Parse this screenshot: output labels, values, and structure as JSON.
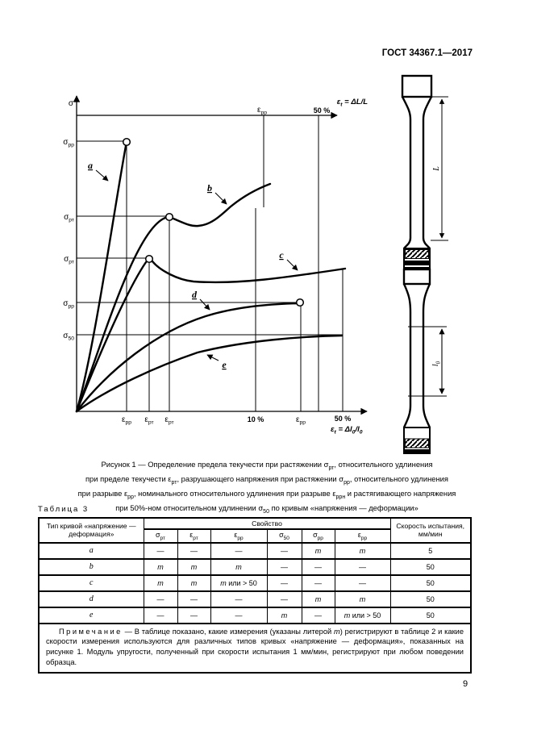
{
  "page": {
    "header": "ГОСТ 34367.1—2017",
    "number": "9"
  },
  "figure": {
    "axis": {
      "sigma": "σ",
      "top_axis_label": {
        "sym": "ε",
        "sub": "t",
        "rest": " = ΔL/L"
      },
      "top_tick_50": "50 %",
      "top_tick_epp": {
        "sym": "ε",
        "sub": "рр"
      },
      "bottom_axis_label": {
        "p1": "ε",
        "s1": "t",
        "p2": " = Δl",
        "s2": "0",
        "p3": "/l",
        "s3": "0"
      },
      "y_labels": [
        {
          "sym": "σ",
          "sub": "рр"
        },
        {
          "sym": "σ",
          "sub": "рт"
        },
        {
          "sym": "σ",
          "sub": "рт"
        },
        {
          "sym": "σ",
          "sub": "рр"
        },
        {
          "sym": "σ",
          "sub": "50"
        }
      ],
      "x_labels": [
        {
          "sym": "ε",
          "sub": "рр"
        },
        {
          "sym": "ε",
          "sub": "рт"
        },
        {
          "sym": "ε",
          "sub": "рт"
        },
        {
          "sym": "ε",
          "sub": "рр"
        }
      ],
      "x_tick_10": "10 %",
      "x_tick_50": "50 %"
    },
    "curve_labels": [
      "a",
      "b",
      "c",
      "d",
      "e"
    ],
    "specimens": {
      "dim1": "L",
      "dim2": {
        "sym": "l",
        "sub": "0"
      }
    }
  },
  "chart_data": {
    "type": "line",
    "title": "Кривые «напряжения — деформации» (схема)",
    "x_axis_top": "εt = ΔL/L, тик 50 %, тик εрр",
    "x_axis_bottom": "εt = Δl0/l0, тики: εрр, εрт, εрт, 10 %, εрр, 50 %",
    "y_axis": "σ, уровни сверху вниз: σрр, σрт, σрт, σрр, σ50",
    "series": [
      {
        "name": "a",
        "shape": "крутой подъём, разрушение в точке (εрр, σрр) — кружок"
      },
      {
        "name": "b",
        "shape": "подъём, предел текучести (εрт, σрт) — кружок, провал, дальнейший подъём до εрр по верхней оси"
      },
      {
        "name": "c",
        "shape": "подъём, предел текучести (εрт, σрт) — кружок, провал, пологий подъём за 50 %"
      },
      {
        "name": "d",
        "shape": "монотонный пологий подъём, разрушение в точке (εрр, σрр) — кружок"
      },
      {
        "name": "e",
        "shape": "монотонный пологий подъём до σ50 при удлинении 50 %"
      }
    ],
    "legend_position": "подписи у кривых со стрелками-выносками",
    "grid": false
  },
  "caption": {
    "lines": [
      "Рисунок 1 — Определение предела текучести при растяжении σ<sub>рт</sub>, относительного удлинения",
      "при пределе текучести ε<sub>рт</sub>, разрушающего напряжения при растяжении σ<sub>рр</sub>, относительного удлинения",
      "при разрыве ε<sub>рр</sub>, номинального относительного удлинения при разрыве ε<sub>ррн</sub> и растягивающего напряжения",
      "при 50%-ном относительном удлинении σ<sub>50</sub> по кривым «напряжения — деформации»"
    ]
  },
  "table": {
    "title": "Таблица 3",
    "col1_header": "Тип кривой «напряжение —<br>деформация»",
    "group_header": "Свойство",
    "prop_headers": [
      "σ<sub>рт</sub>",
      "ε<sub>рт</sub>",
      "ε<sub>рр</sub>",
      "σ<sub>50</sub>",
      "σ<sub>рр</sub>",
      "ε<sub>рр</sub>"
    ],
    "speed_header": "Скорость испытания,<br>мм/мин",
    "rows": [
      {
        "type": "a",
        "cells": [
          "—",
          "—",
          "—",
          "—",
          "<i>m</i>",
          "<i>m</i>"
        ],
        "speed": "5"
      },
      {
        "type": "b",
        "cells": [
          "<i>m</i>",
          "<i>m</i>",
          "<i>m</i>",
          "—",
          "—",
          "—"
        ],
        "speed": "50"
      },
      {
        "type": "c",
        "cells": [
          "<i>m</i>",
          "<i>m</i>",
          "<i>m</i> или &gt; 50",
          "—",
          "—",
          "—"
        ],
        "speed": "50"
      },
      {
        "type": "d",
        "cells": [
          "—",
          "—",
          "—",
          "—",
          "<i>m</i>",
          "<i>m</i>"
        ],
        "speed": "50"
      },
      {
        "type": "e",
        "cells": [
          "—",
          "—",
          "—",
          "<i>m</i>",
          "—",
          "<i>m</i> или &gt; 50"
        ],
        "speed": "50"
      }
    ]
  },
  "note": {
    "label": "Примечание",
    "text": " — В таблице показано, какие измерения (указаны литерой <i>m</i>) регистрируют в таблице 2 и какие скорости измерения используются для различных типов кривых «напряжение — деформация», показанных на рисунке 1. Модуль упругости, полученный при скорости испытания 1 мм/мин, регистрируют при любом поведении образца."
  }
}
